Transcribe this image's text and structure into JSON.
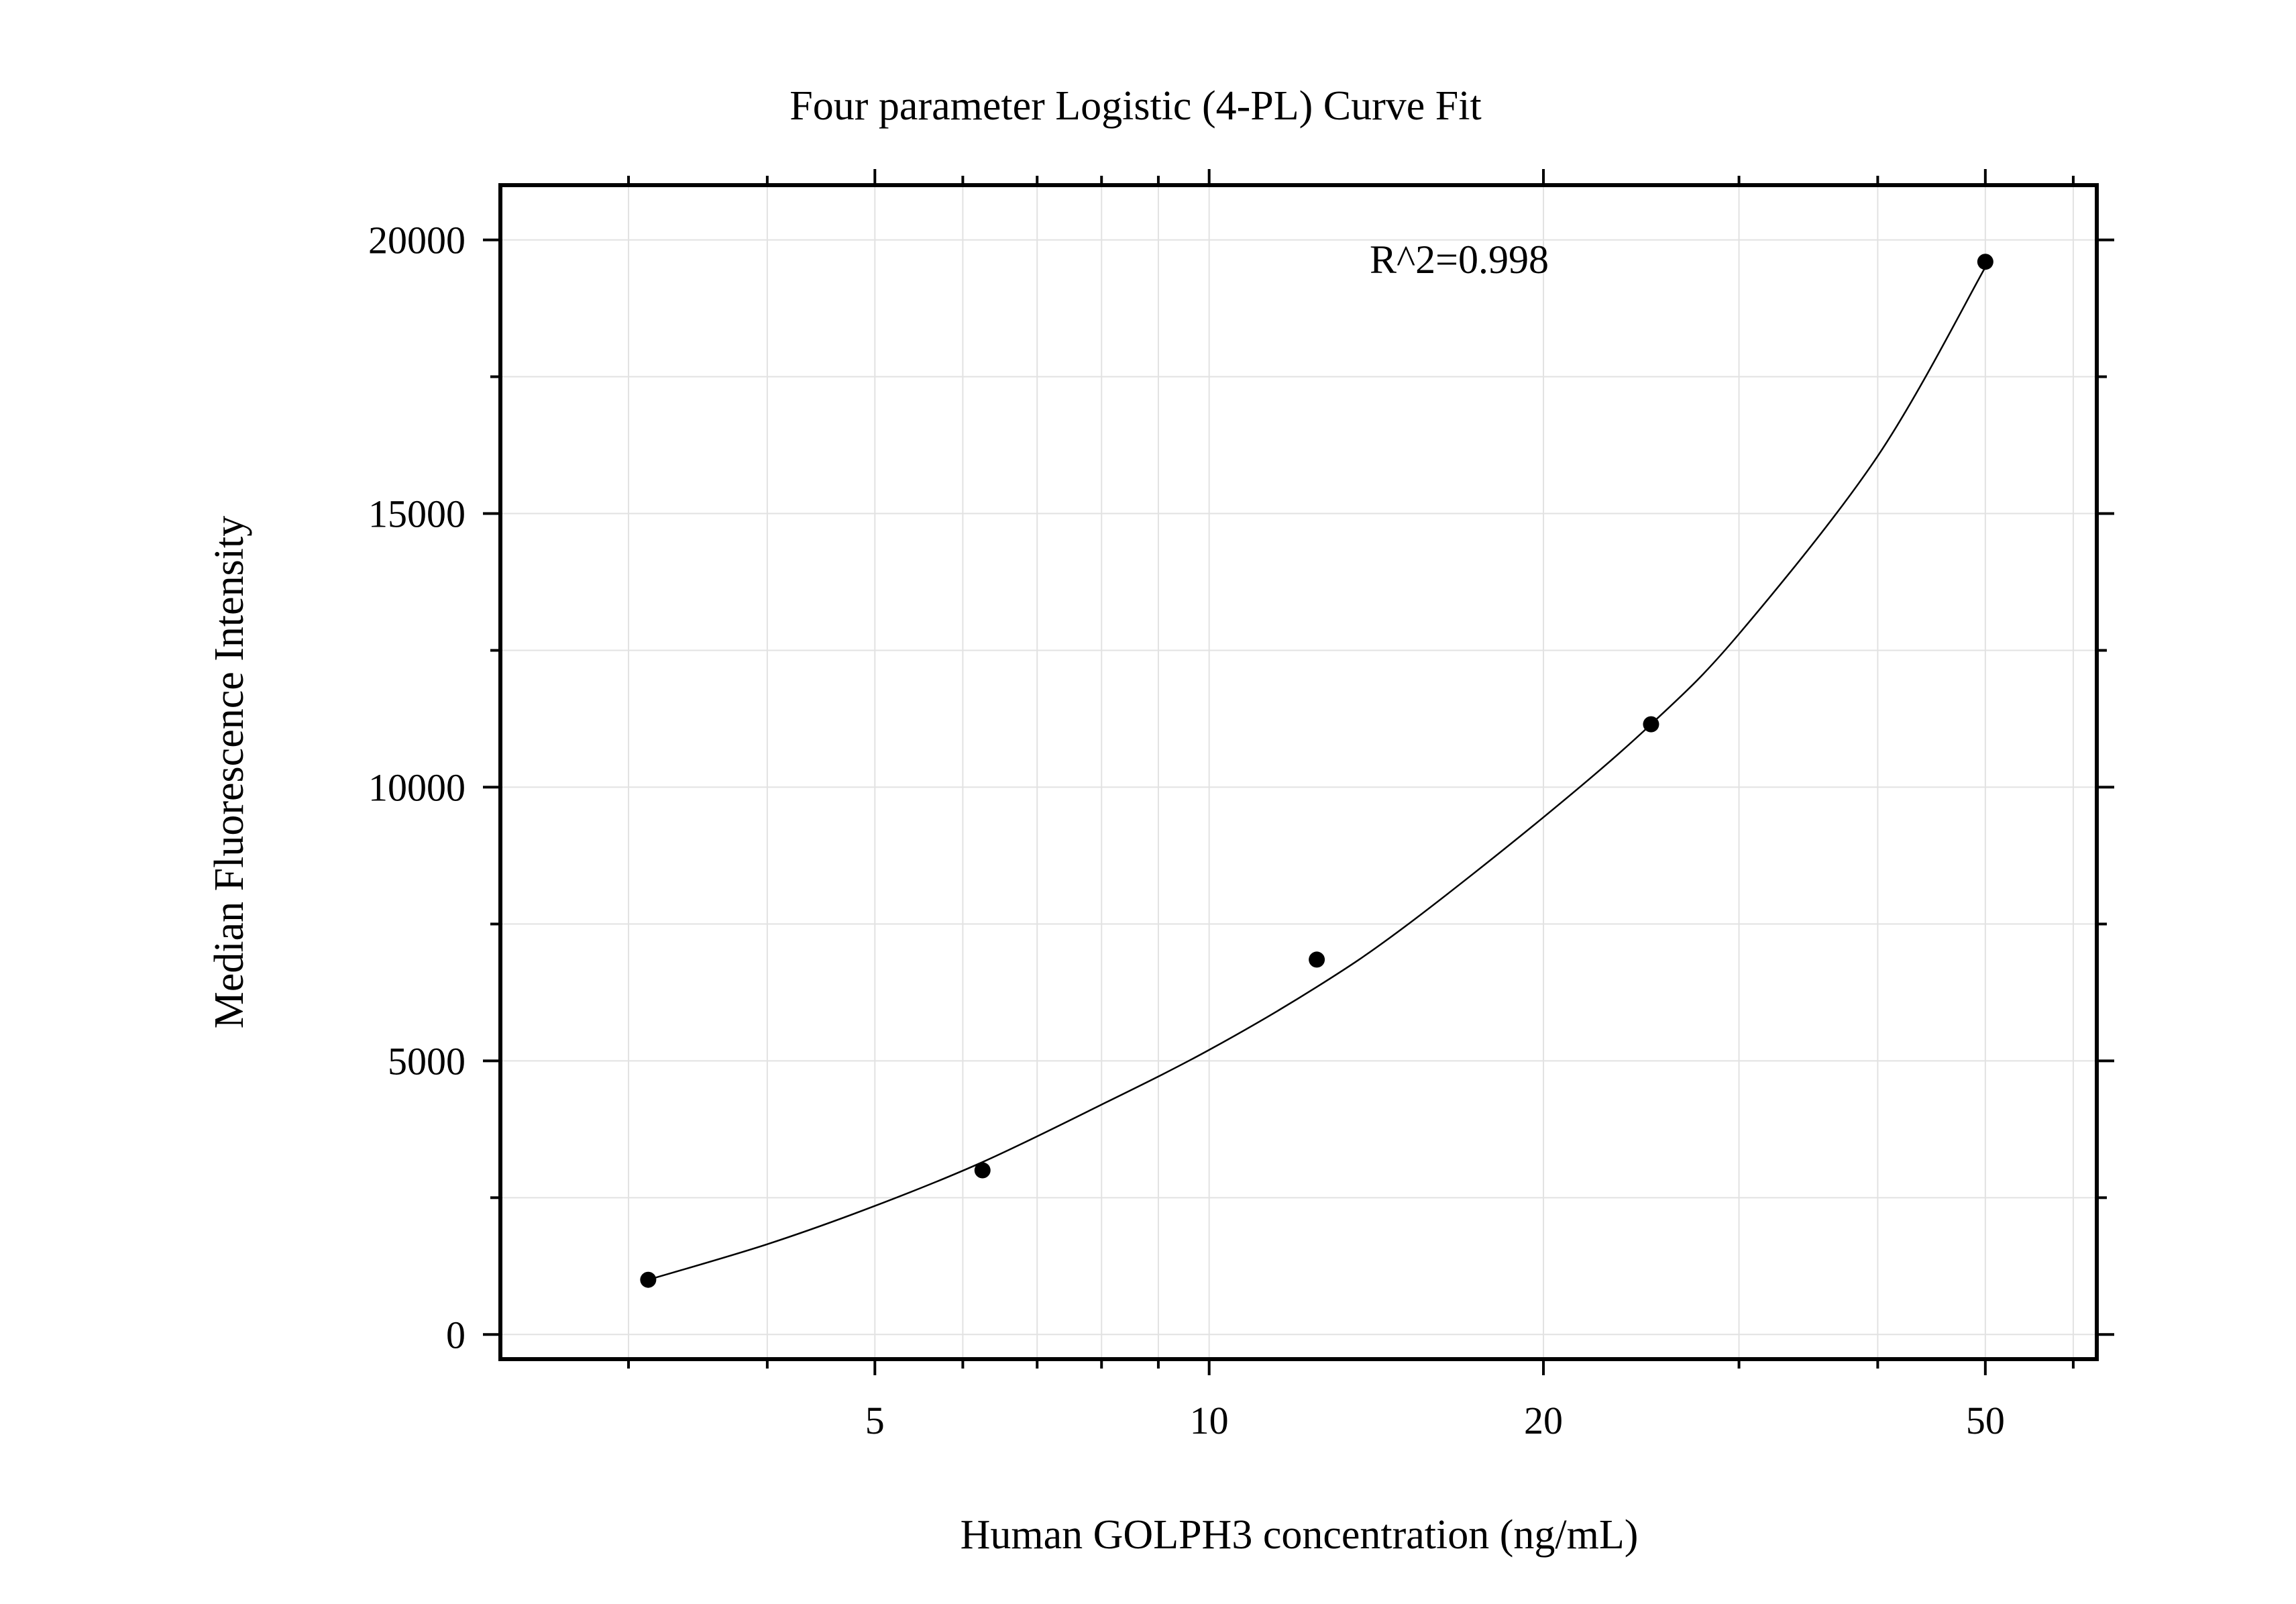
{
  "chart_data": {
    "type": "scatter",
    "title": "Four parameter Logistic (4-PL) Curve Fit",
    "xlabel": "Human GOLPH3 concentration (ng/mL)",
    "ylabel": "Median Fluorescence Intensity",
    "x_scale": "log",
    "xlim": [
      2.3,
      63
    ],
    "ylim": [
      -450,
      21000
    ],
    "x_ticks_major": [
      5,
      10,
      20,
      50
    ],
    "x_ticks_major_labels": [
      "5",
      "10",
      "20",
      "50"
    ],
    "x_ticks_minor": [
      3,
      4,
      6,
      7,
      8,
      9,
      30,
      40,
      60
    ],
    "y_ticks_major": [
      0,
      5000,
      10000,
      15000,
      20000
    ],
    "y_ticks_major_labels": [
      "0",
      "5000",
      "10000",
      "15000",
      "20000"
    ],
    "y_ticks_minor": [
      2500,
      7500,
      12500,
      17500
    ],
    "grid": true,
    "annotation": "R^2=0.998",
    "series": [
      {
        "kind": "points",
        "x": [
          3.125,
          6.25,
          12.5,
          25,
          50
        ],
        "y": [
          1000,
          3000,
          6850,
          11150,
          19600
        ]
      },
      {
        "kind": "fit",
        "x": [
          3.125,
          4,
          5,
          6.25,
          8,
          10,
          12.5,
          15,
          20,
          25,
          30,
          40,
          50
        ],
        "y": [
          1000,
          1650,
          2350,
          3150,
          4200,
          5200,
          6350,
          7450,
          9450,
          11150,
          12800,
          16050,
          19500
        ]
      }
    ],
    "colors": {
      "points": "#000000",
      "fit": "#000000",
      "grid": "#e2e2e2",
      "frame": "#000000"
    }
  }
}
